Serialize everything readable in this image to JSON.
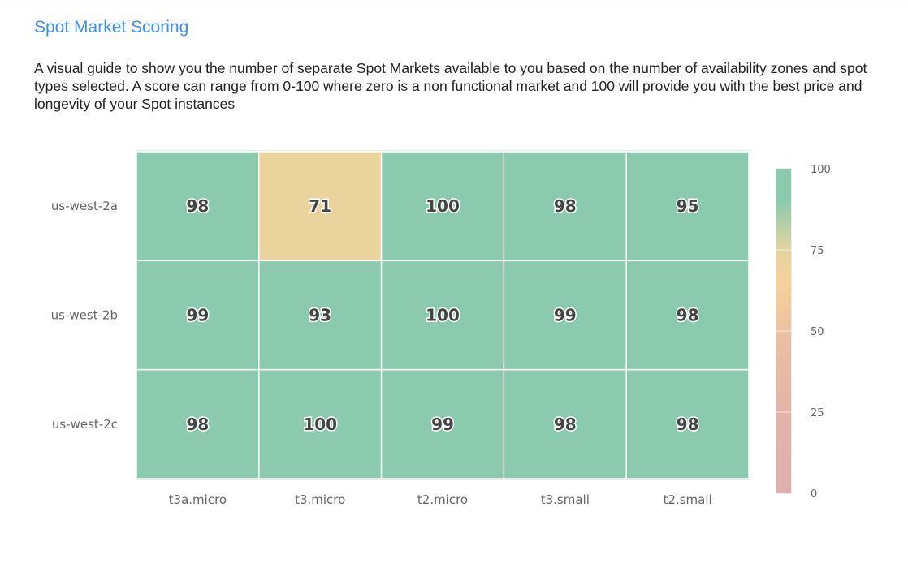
{
  "header": {
    "title": "Spot Market Scoring",
    "description": "A visual guide to show you the number of separate Spot Markets available to you based on the number of availability zones and spot types selected. A score can range from 0-100 where zero is a non functional market and 100 will provide you with the best price and longevity of your Spot instances"
  },
  "chart_data": {
    "type": "heatmap",
    "x_categories": [
      "t3a.micro",
      "t3.micro",
      "t2.micro",
      "t3.small",
      "t2.small"
    ],
    "y_categories": [
      "us-west-2a",
      "us-west-2b",
      "us-west-2c"
    ],
    "values": [
      [
        98,
        71,
        100,
        98,
        95
      ],
      [
        99,
        93,
        100,
        99,
        98
      ],
      [
        98,
        100,
        99,
        98,
        98
      ]
    ],
    "colorbar": {
      "range": [
        0,
        100
      ],
      "ticks": [
        0,
        25,
        50,
        75,
        100
      ],
      "tick_labels": [
        "0",
        "25",
        "50",
        "75",
        "100"
      ],
      "color_stops": [
        {
          "value": 0,
          "color": "#deafaf"
        },
        {
          "value": 25,
          "color": "#e2b4a8"
        },
        {
          "value": 50,
          "color": "#ecc1a0"
        },
        {
          "value": 65,
          "color": "#f6d19c"
        },
        {
          "value": 75,
          "color": "#e3d49f"
        },
        {
          "value": 90,
          "color": "#8ccab0"
        },
        {
          "value": 100,
          "color": "#8ccab0"
        }
      ]
    }
  }
}
